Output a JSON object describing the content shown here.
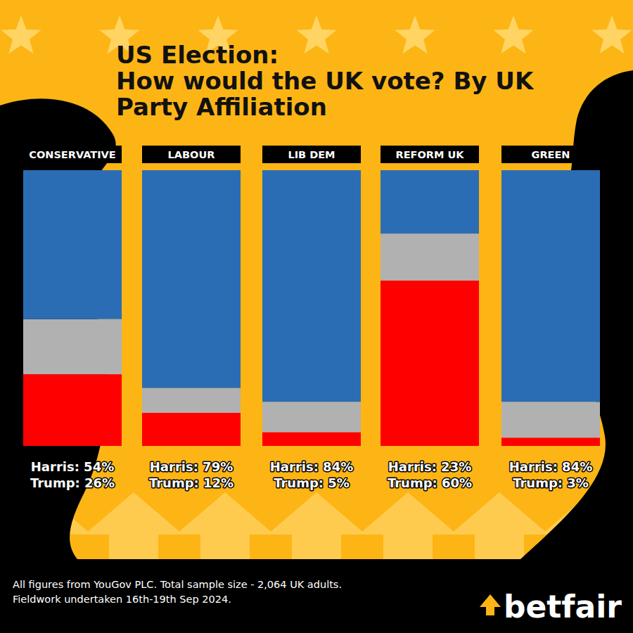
{
  "chart_data": {
    "type": "bar",
    "stacked": true,
    "data_labels": true,
    "tick_labels": false,
    "title": "US Election:\nHow would the UK vote? By UK\nParty Affiliation",
    "categories": [
      "CONSERVATIVE",
      "LABOUR",
      "LIB DEM",
      "REFORM UK",
      "GREEN"
    ],
    "ylim": [
      0,
      100
    ],
    "series": [
      {
        "color": "#ff0000",
        "values": [
          26,
          12,
          5,
          60,
          3
        ],
        "value_labels": [
          "Trump: 26%",
          "Trump: 12%",
          "Trump: 5%",
          "Trump: 60%",
          "Trump: 3%"
        ]
      },
      {
        "color": "#b1b1b1",
        "values": [
          20,
          9,
          11,
          17,
          13
        ]
      },
      {
        "color": "#2b6db4",
        "values": [
          54,
          79,
          84,
          23,
          84
        ],
        "value_labels": [
          "Harris: 54%",
          "Harris: 79%",
          "Harris: 84%",
          "Harris: 23%",
          "Harris: 84%"
        ]
      }
    ]
  },
  "footer": {
    "source": "All figures from YouGov PLC. Total sample size - 2,064 UK adults.\nFieldwork undertaken 16th-19th Sep 2024.",
    "brand": "betfair"
  }
}
